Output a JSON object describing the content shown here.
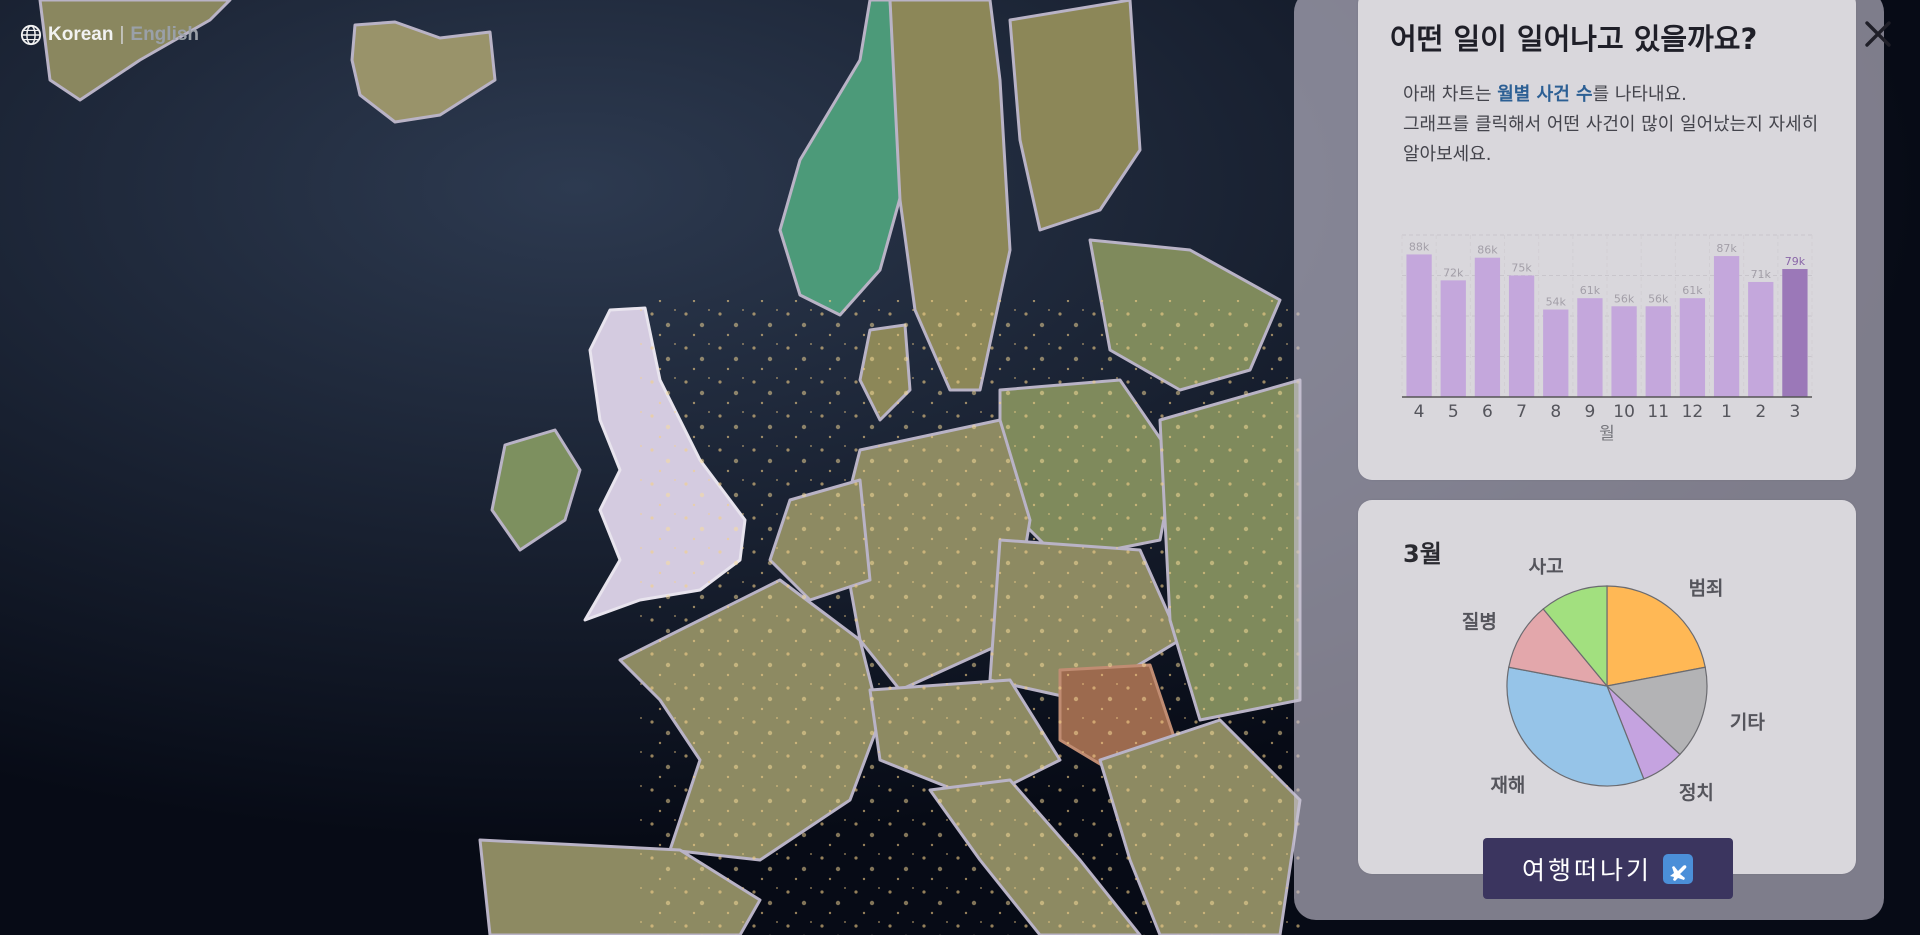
{
  "language": {
    "active": "Korean",
    "separator": "|",
    "other": "English"
  },
  "panel": {
    "title": "어떤 일이 일어나고 있을까요?",
    "intro_pre": "아래 차트는 ",
    "intro_highlight": "월별 사건 수",
    "intro_post": "를 나타내요.",
    "intro_line2": "그래프를 클릭해서 어떤 사건이 많이 일어났는지 자세히 알아보세요."
  },
  "chart_data": [
    {
      "type": "bar",
      "categories": [
        "4",
        "5",
        "6",
        "7",
        "8",
        "9",
        "10",
        "11",
        "12",
        "1",
        "2",
        "3"
      ],
      "values": [
        88,
        72,
        86,
        75,
        54,
        61,
        56,
        56,
        61,
        87,
        71,
        79
      ],
      "data_labels": [
        "88k",
        "72k",
        "86k",
        "75k",
        "54k",
        "61k",
        "56k",
        "56k",
        "61k",
        "87k",
        "71k",
        "79k"
      ],
      "xlabel": "월",
      "ylabel": "",
      "ylim": [
        0,
        100
      ],
      "highlighted_category": "3",
      "grid": true,
      "colors": {
        "bar": "#c4a7dc",
        "highlight": "#9b78b8"
      }
    },
    {
      "type": "pie",
      "title": "3월",
      "labels": [
        "범죄",
        "기타",
        "정치",
        "재해",
        "질병",
        "사고"
      ],
      "values": [
        22,
        15,
        7,
        34,
        11,
        11
      ],
      "colors": [
        "#ffb855",
        "#b3b3b5",
        "#c5a3e0",
        "#96c4e8",
        "#e3a7ab",
        "#a2e07f"
      ]
    }
  ],
  "button": {
    "label": "여행떠나기",
    "icon": "airplane-icon"
  }
}
